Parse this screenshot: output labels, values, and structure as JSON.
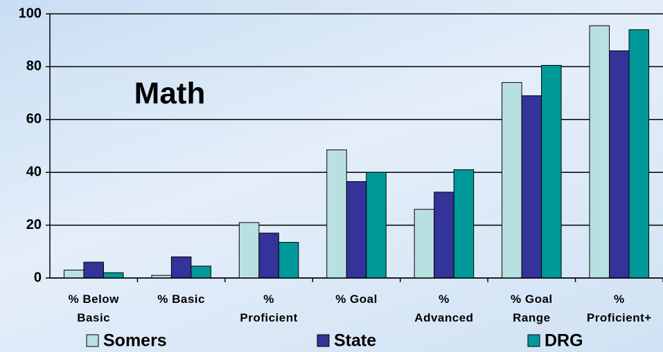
{
  "chart_data": {
    "type": "bar",
    "annotation": "Math",
    "categories": [
      "% Below Basic",
      "% Basic",
      "% Proficient",
      "% Goal",
      "% Advanced",
      "% Goal Range",
      "% Proficient+"
    ],
    "series": [
      {
        "name": "Somers",
        "color": "#b9e0e0",
        "values": [
          3,
          1,
          21,
          48.5,
          26,
          74,
          95.5
        ]
      },
      {
        "name": "State",
        "color": "#333399",
        "values": [
          6,
          8,
          17,
          36.5,
          32.5,
          69,
          86
        ]
      },
      {
        "name": "DRG",
        "color": "#009999",
        "values": [
          2,
          4.5,
          13.5,
          40,
          41,
          80.5,
          94
        ]
      }
    ],
    "ylim": [
      0,
      100
    ],
    "yticks": [
      0,
      20,
      40,
      60,
      80,
      100
    ],
    "grid": true,
    "legend": "bottom"
  }
}
